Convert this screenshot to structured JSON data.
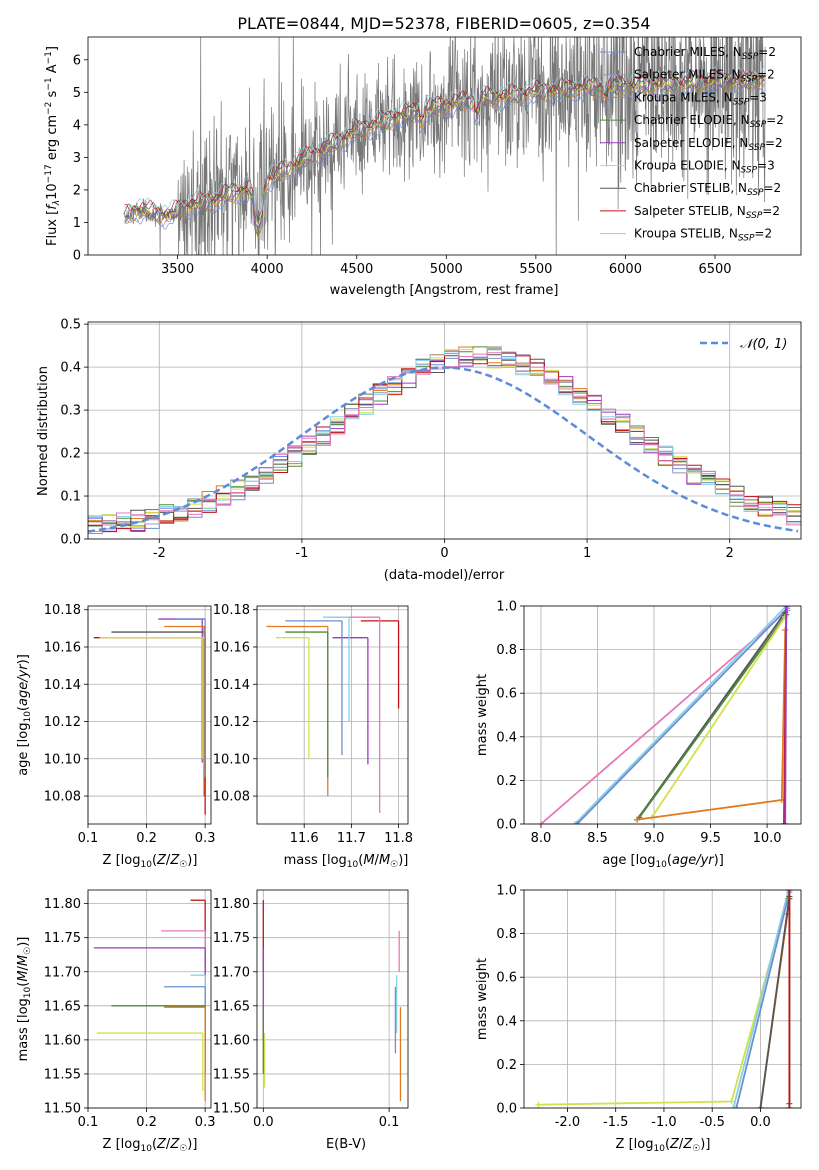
{
  "figure": {
    "title": "PLATE=0844, MJD=52378, FIBERID=0605, z=0.354"
  },
  "colors": {
    "Chabrier MILES": "#6b8fd6",
    "Salpeter MILES": "#9b8fb0",
    "Kroupa MILES": "#e07b1f",
    "Chabrier ELODIE": "#4d8a3c",
    "Salpeter ELODIE": "#9a3cc0",
    "Kroupa ELODIE": "#d4e04a",
    "Chabrier STELIB": "#555555",
    "Salpeter STELIB": "#c0101a",
    "Kroupa STELIB": "#86d0e6",
    "pink": "#e579b8",
    "data": "#777777",
    "normal": "#5b8bd9"
  },
  "chart_data": [
    {
      "id": "spectrum",
      "type": "line",
      "xlabel": "wavelength [Angstrom, rest frame]",
      "ylabel": "Flux [f_λ10^-17 erg cm^-2 s^-1 A^-1]",
      "xlim": [
        3000,
        6980
      ],
      "ylim": [
        0,
        6.7
      ],
      "xticks": [
        3500,
        4000,
        4500,
        5000,
        5500,
        6000,
        6500
      ],
      "yticks": [
        0,
        1,
        2,
        3,
        4,
        5,
        6
      ],
      "grid": false,
      "legend_position": "top-right",
      "legend": [
        {
          "label": "Chabrier MILES, N",
          "sub": "SSP",
          "suffix": "=2",
          "color": "#6b8fd6"
        },
        {
          "label": "Salpeter MILES, N",
          "sub": "SSP",
          "suffix": "=2",
          "color": "#9b8fb0"
        },
        {
          "label": "Kroupa MILES, N",
          "sub": "SSP",
          "suffix": "=3",
          "color": "#e07b1f"
        },
        {
          "label": "Chabrier ELODIE, N",
          "sub": "SSP",
          "suffix": "=2",
          "color": "#4d8a3c"
        },
        {
          "label": "Salpeter ELODIE, N",
          "sub": "SSP",
          "suffix": "=2",
          "color": "#9a3cc0"
        },
        {
          "label": "Kroupa ELODIE, N",
          "sub": "SSP",
          "suffix": "=3",
          "color": "#d4e04a"
        },
        {
          "label": "Chabrier STELIB, N",
          "sub": "SSP",
          "suffix": "=2",
          "color": "#555555"
        },
        {
          "label": "Salpeter STELIB, N",
          "sub": "SSP",
          "suffix": "=2",
          "color": "#c0101a"
        },
        {
          "label": "Kroupa STELIB, N",
          "sub": "SSP",
          "suffix": "=2",
          "color": "#86d0e6"
        }
      ],
      "model_envelope": [
        [
          3210,
          1.2
        ],
        [
          3280,
          1.4
        ],
        [
          3360,
          1.3
        ],
        [
          3450,
          1.2
        ],
        [
          3550,
          1.5
        ],
        [
          3650,
          1.6
        ],
        [
          3720,
          1.7
        ],
        [
          3800,
          1.9
        ],
        [
          3900,
          2.0
        ],
        [
          3950,
          1.4
        ],
        [
          4000,
          2.3
        ],
        [
          4100,
          2.6
        ],
        [
          4200,
          2.9
        ],
        [
          4300,
          3.2
        ],
        [
          4400,
          3.5
        ],
        [
          4500,
          3.8
        ],
        [
          4600,
          4.0
        ],
        [
          4700,
          4.2
        ],
        [
          4800,
          4.35
        ],
        [
          4900,
          4.5
        ],
        [
          5000,
          4.6
        ],
        [
          5100,
          4.7
        ],
        [
          5200,
          4.8
        ],
        [
          5300,
          4.85
        ],
        [
          5400,
          4.9
        ],
        [
          5500,
          5.0
        ],
        [
          5600,
          5.05
        ],
        [
          5700,
          5.1
        ],
        [
          5800,
          5.15
        ],
        [
          5900,
          5.15
        ],
        [
          6000,
          5.2
        ],
        [
          6100,
          5.2
        ],
        [
          6200,
          5.25
        ],
        [
          6300,
          5.25
        ],
        [
          6400,
          5.3
        ],
        [
          6500,
          5.35
        ],
        [
          6600,
          5.3
        ],
        [
          6700,
          5.35
        ],
        [
          6780,
          5.4
        ]
      ],
      "data_noise_envelope": [
        [
          3200,
          0.2
        ],
        [
          3500,
          0.9
        ],
        [
          3700,
          1.2
        ],
        [
          3900,
          1.5
        ],
        [
          4100,
          1.2
        ],
        [
          4500,
          1.0
        ],
        [
          5000,
          1.1
        ],
        [
          5500,
          1.3
        ],
        [
          6000,
          1.6
        ],
        [
          6500,
          1.8
        ],
        [
          6780,
          2.0
        ]
      ]
    },
    {
      "id": "residuals",
      "type": "line",
      "xlabel": "(data-model)/error",
      "ylabel": "Normed distribution",
      "xlim": [
        -2.5,
        2.5
      ],
      "ylim": [
        0,
        0.505
      ],
      "xticks": [
        -2,
        -1,
        0,
        1,
        2
      ],
      "yticks": [
        0.0,
        0.1,
        0.2,
        0.3,
        0.4,
        0.5
      ],
      "grid": true,
      "legend_position": "top-right",
      "legend": [
        {
          "label": "𝒩(0, 1)",
          "color": "#5b8bd9",
          "style": "dashed"
        }
      ],
      "normal_curve": {
        "mean": 0,
        "sigma": 1
      },
      "histogram_bin_width": 0.1,
      "histogram_center": 0.25,
      "histogram_sigma": 1.0,
      "histogram_peak": 0.44
    },
    {
      "id": "age-vs-Z",
      "type": "line",
      "xlabel": "Z [log10(Z/Z☉)]",
      "ylabel": "age [log10(age/yr)]",
      "xlim": [
        0.1,
        0.31
      ],
      "ylim": [
        10.065,
        10.182
      ],
      "xticks": [
        0.1,
        0.2,
        0.3
      ],
      "yticks": [
        10.08,
        10.1,
        10.12,
        10.14,
        10.16,
        10.18
      ],
      "grid": true,
      "error_crosses": [
        {
          "x": 0.295,
          "y": 10.175,
          "xerr": [
            0.22,
            0.3
          ],
          "yerr": [
            10.098,
            10.175
          ],
          "color": "#9a3cc0"
        },
        {
          "x": 0.3,
          "y": 10.168,
          "xerr": [
            0.14,
            0.3
          ],
          "yerr": [
            10.09,
            10.168
          ],
          "color": "#555555"
        },
        {
          "x": 0.298,
          "y": 10.171,
          "xerr": [
            0.23,
            0.3
          ],
          "yerr": [
            10.08,
            10.171
          ],
          "color": "#e07b1f"
        },
        {
          "x": 0.3,
          "y": 10.165,
          "xerr": [
            0.11,
            0.3
          ],
          "yerr": [
            10.07,
            10.165
          ],
          "color": "#c0101a"
        },
        {
          "x": 0.296,
          "y": 10.165,
          "xerr": [
            0.12,
            0.3
          ],
          "yerr": [
            10.1,
            10.165
          ],
          "color": "#d4e04a"
        },
        {
          "x": 0.3,
          "y": 10.175,
          "xerr": [
            0.25,
            0.3
          ],
          "yerr": [
            10.09,
            10.175
          ],
          "color": "#6b8fd6"
        }
      ]
    },
    {
      "id": "age-vs-mass",
      "type": "line",
      "xlabel": "mass [log10(M/M☉)]",
      "ylabel": "",
      "xlim": [
        11.5,
        11.82
      ],
      "ylim": [
        10.065,
        10.182
      ],
      "xticks": [
        11.6,
        11.7,
        11.8
      ],
      "yticks": [
        10.08,
        10.1,
        10.12,
        10.14,
        10.16,
        10.18
      ],
      "grid": true,
      "error_crosses": [
        {
          "x": 11.8,
          "y": 10.174,
          "xerr": [
            11.72,
            11.8
          ],
          "yerr": [
            10.127,
            10.174
          ],
          "color": "#c0101a"
        },
        {
          "x": 11.76,
          "y": 10.176,
          "xerr": [
            11.66,
            11.76
          ],
          "yerr": [
            10.071,
            10.176
          ],
          "color": "#e579b8"
        },
        {
          "x": 11.735,
          "y": 10.165,
          "xerr": [
            11.66,
            11.735
          ],
          "yerr": [
            10.097,
            10.165
          ],
          "color": "#9a3cc0"
        },
        {
          "x": 11.68,
          "y": 10.174,
          "xerr": [
            11.56,
            11.68
          ],
          "yerr": [
            10.102,
            10.174
          ],
          "color": "#6b8fd6"
        },
        {
          "x": 11.65,
          "y": 10.171,
          "xerr": [
            11.52,
            11.65
          ],
          "yerr": [
            10.08,
            10.171
          ],
          "color": "#e07b1f"
        },
        {
          "x": 11.65,
          "y": 10.168,
          "xerr": [
            11.56,
            11.65
          ],
          "yerr": [
            10.09,
            10.168
          ],
          "color": "#4d8a3c"
        },
        {
          "x": 11.61,
          "y": 10.165,
          "xerr": [
            11.54,
            11.61
          ],
          "yerr": [
            10.1,
            10.165
          ],
          "color": "#d4e04a"
        },
        {
          "x": 11.695,
          "y": 10.176,
          "xerr": [
            11.64,
            11.695
          ],
          "yerr": [
            10.12,
            10.176
          ],
          "color": "#86d0e6"
        }
      ]
    },
    {
      "id": "mass-weight-vs-age",
      "type": "line",
      "xlabel": "age [log10(age/yr)]",
      "ylabel": "mass weight",
      "xlim": [
        7.85,
        10.3
      ],
      "ylim": [
        0,
        1
      ],
      "xticks": [
        8.0,
        8.5,
        9.0,
        9.5,
        10.0
      ],
      "yticks": [
        0.0,
        0.2,
        0.4,
        0.6,
        0.8,
        1.0
      ],
      "grid": true,
      "series": [
        {
          "color": "#e579b8",
          "points": [
            [
              8.0,
              0.0
            ],
            [
              10.18,
              0.98
            ]
          ]
        },
        {
          "color": "#86d0e6",
          "points": [
            [
              8.3,
              0.0
            ],
            [
              10.17,
              1.0
            ]
          ]
        },
        {
          "color": "#6b8fd6",
          "points": [
            [
              8.32,
              0.0
            ],
            [
              10.18,
              0.99
            ]
          ]
        },
        {
          "color": "#555555",
          "points": [
            [
              8.85,
              0.02
            ],
            [
              10.16,
              0.97
            ]
          ]
        },
        {
          "color": "#4d8a3c",
          "points": [
            [
              8.87,
              0.03
            ],
            [
              10.17,
              0.96
            ]
          ]
        },
        {
          "color": "#d4e04a",
          "points": [
            [
              8.98,
              0.03
            ],
            [
              10.16,
              0.95
            ]
          ]
        },
        {
          "color": "#e07b1f",
          "points": [
            [
              8.85,
              0.02
            ],
            [
              10.13,
              0.11
            ],
            [
              10.16,
              0.89
            ]
          ]
        },
        {
          "color": "#c0101a",
          "points": [
            [
              10.15,
              0.0
            ],
            [
              10.17,
              1.0
            ]
          ]
        },
        {
          "color": "#9a3cc0",
          "points": [
            [
              10.16,
              0.0
            ],
            [
              10.17,
              1.0
            ]
          ]
        }
      ]
    },
    {
      "id": "mass-vs-Z",
      "type": "line",
      "xlabel": "Z [log10(Z/Z☉)]",
      "ylabel": "mass [log10(M/M☉)]",
      "xlim": [
        0.1,
        0.31
      ],
      "ylim": [
        11.5,
        11.82
      ],
      "xticks": [
        0.1,
        0.2,
        0.3
      ],
      "yticks": [
        11.5,
        11.55,
        11.6,
        11.65,
        11.7,
        11.75,
        11.8
      ],
      "grid": true,
      "error_crosses": [
        {
          "x": 0.3,
          "y": 11.805,
          "xerr": [
            0.275,
            0.3
          ],
          "yerr": [
            11.7,
            11.805
          ],
          "color": "#c0101a"
        },
        {
          "x": 0.3,
          "y": 11.76,
          "xerr": [
            0.225,
            0.3
          ],
          "yerr": [
            11.7,
            11.76
          ],
          "color": "#e579b8"
        },
        {
          "x": 0.3,
          "y": 11.735,
          "xerr": [
            0.11,
            0.3
          ],
          "yerr": [
            11.6,
            11.735
          ],
          "color": "#9a3cc0"
        },
        {
          "x": 0.3,
          "y": 11.695,
          "xerr": [
            0.275,
            0.3
          ],
          "yerr": [
            11.61,
            11.695
          ],
          "color": "#86d0e6"
        },
        {
          "x": 0.3,
          "y": 11.678,
          "xerr": [
            0.23,
            0.3
          ],
          "yerr": [
            11.58,
            11.678
          ],
          "color": "#6b8fd6"
        },
        {
          "x": 0.3,
          "y": 11.65,
          "xerr": [
            0.14,
            0.3
          ],
          "yerr": [
            11.55,
            11.65
          ],
          "color": "#4d8a3c"
        },
        {
          "x": 0.3,
          "y": 11.648,
          "xerr": [
            0.23,
            0.3
          ],
          "yerr": [
            11.51,
            11.648
          ],
          "color": "#e07b1f"
        },
        {
          "x": 0.296,
          "y": 11.61,
          "xerr": [
            0.115,
            0.296
          ],
          "yerr": [
            11.525,
            11.61
          ],
          "color": "#d4e04a"
        }
      ]
    },
    {
      "id": "mass-vs-EBV",
      "type": "line",
      "xlabel": "E(B-V)",
      "ylabel": "",
      "xlim": [
        -0.005,
        0.115
      ],
      "ylim": [
        11.5,
        11.82
      ],
      "xticks": [
        0.0,
        0.1
      ],
      "yticks": [
        11.5,
        11.55,
        11.6,
        11.65,
        11.7,
        11.75,
        11.8
      ],
      "grid": true,
      "vertical_segments": [
        {
          "x": 0.0,
          "y": [
            11.7,
            11.805
          ],
          "color": "#c0101a"
        },
        {
          "x": 0.0,
          "y": [
            11.6,
            11.735
          ],
          "color": "#9a3cc0"
        },
        {
          "x": 0.001,
          "y": [
            11.53,
            11.61
          ],
          "color": "#d4e04a"
        },
        {
          "x": 0.0,
          "y": [
            11.55,
            11.65
          ],
          "color": "#4d8a3c"
        },
        {
          "x": 0.108,
          "y": [
            11.7,
            11.76
          ],
          "color": "#e579b8"
        },
        {
          "x": 0.105,
          "y": [
            11.58,
            11.678
          ],
          "color": "#6b8fd6"
        },
        {
          "x": 0.106,
          "y": [
            11.61,
            11.695
          ],
          "color": "#86d0e6"
        },
        {
          "x": 0.109,
          "y": [
            11.51,
            11.648
          ],
          "color": "#e07b1f"
        }
      ]
    },
    {
      "id": "mass-weight-vs-Z",
      "type": "line",
      "xlabel": "Z [log10(Z/Z☉)]",
      "ylabel": "mass weight",
      "xlim": [
        -2.45,
        0.42
      ],
      "ylim": [
        0,
        1
      ],
      "xticks": [
        -2.0,
        -1.5,
        -1.0,
        -0.5,
        0.0
      ],
      "yticks": [
        0.0,
        0.2,
        0.4,
        0.6,
        0.8,
        1.0
      ],
      "grid": true,
      "series": [
        {
          "color": "#d4e04a",
          "points": [
            [
              -2.3,
              0.015
            ],
            [
              -0.3,
              0.03
            ],
            [
              0.28,
              0.96
            ]
          ]
        },
        {
          "color": "#86d0e6",
          "points": [
            [
              -0.28,
              0.0
            ],
            [
              0.29,
              1.0
            ]
          ]
        },
        {
          "color": "#6b8fd6",
          "points": [
            [
              -0.25,
              0.0
            ],
            [
              0.3,
              0.99
            ]
          ]
        },
        {
          "color": "#e07b1f",
          "points": [
            [
              0.0,
              0.0
            ],
            [
              0.28,
              0.89
            ]
          ]
        },
        {
          "color": "#555555",
          "points": [
            [
              0.0,
              0.0
            ],
            [
              0.3,
              0.97
            ]
          ]
        },
        {
          "color": "#4d8a3c",
          "points": [
            [
              0.3,
              0.02
            ],
            [
              0.3,
              0.96
            ]
          ]
        },
        {
          "color": "#c0101a",
          "points": [
            [
              0.3,
              0.0
            ],
            [
              0.3,
              1.0
            ]
          ]
        }
      ]
    }
  ]
}
